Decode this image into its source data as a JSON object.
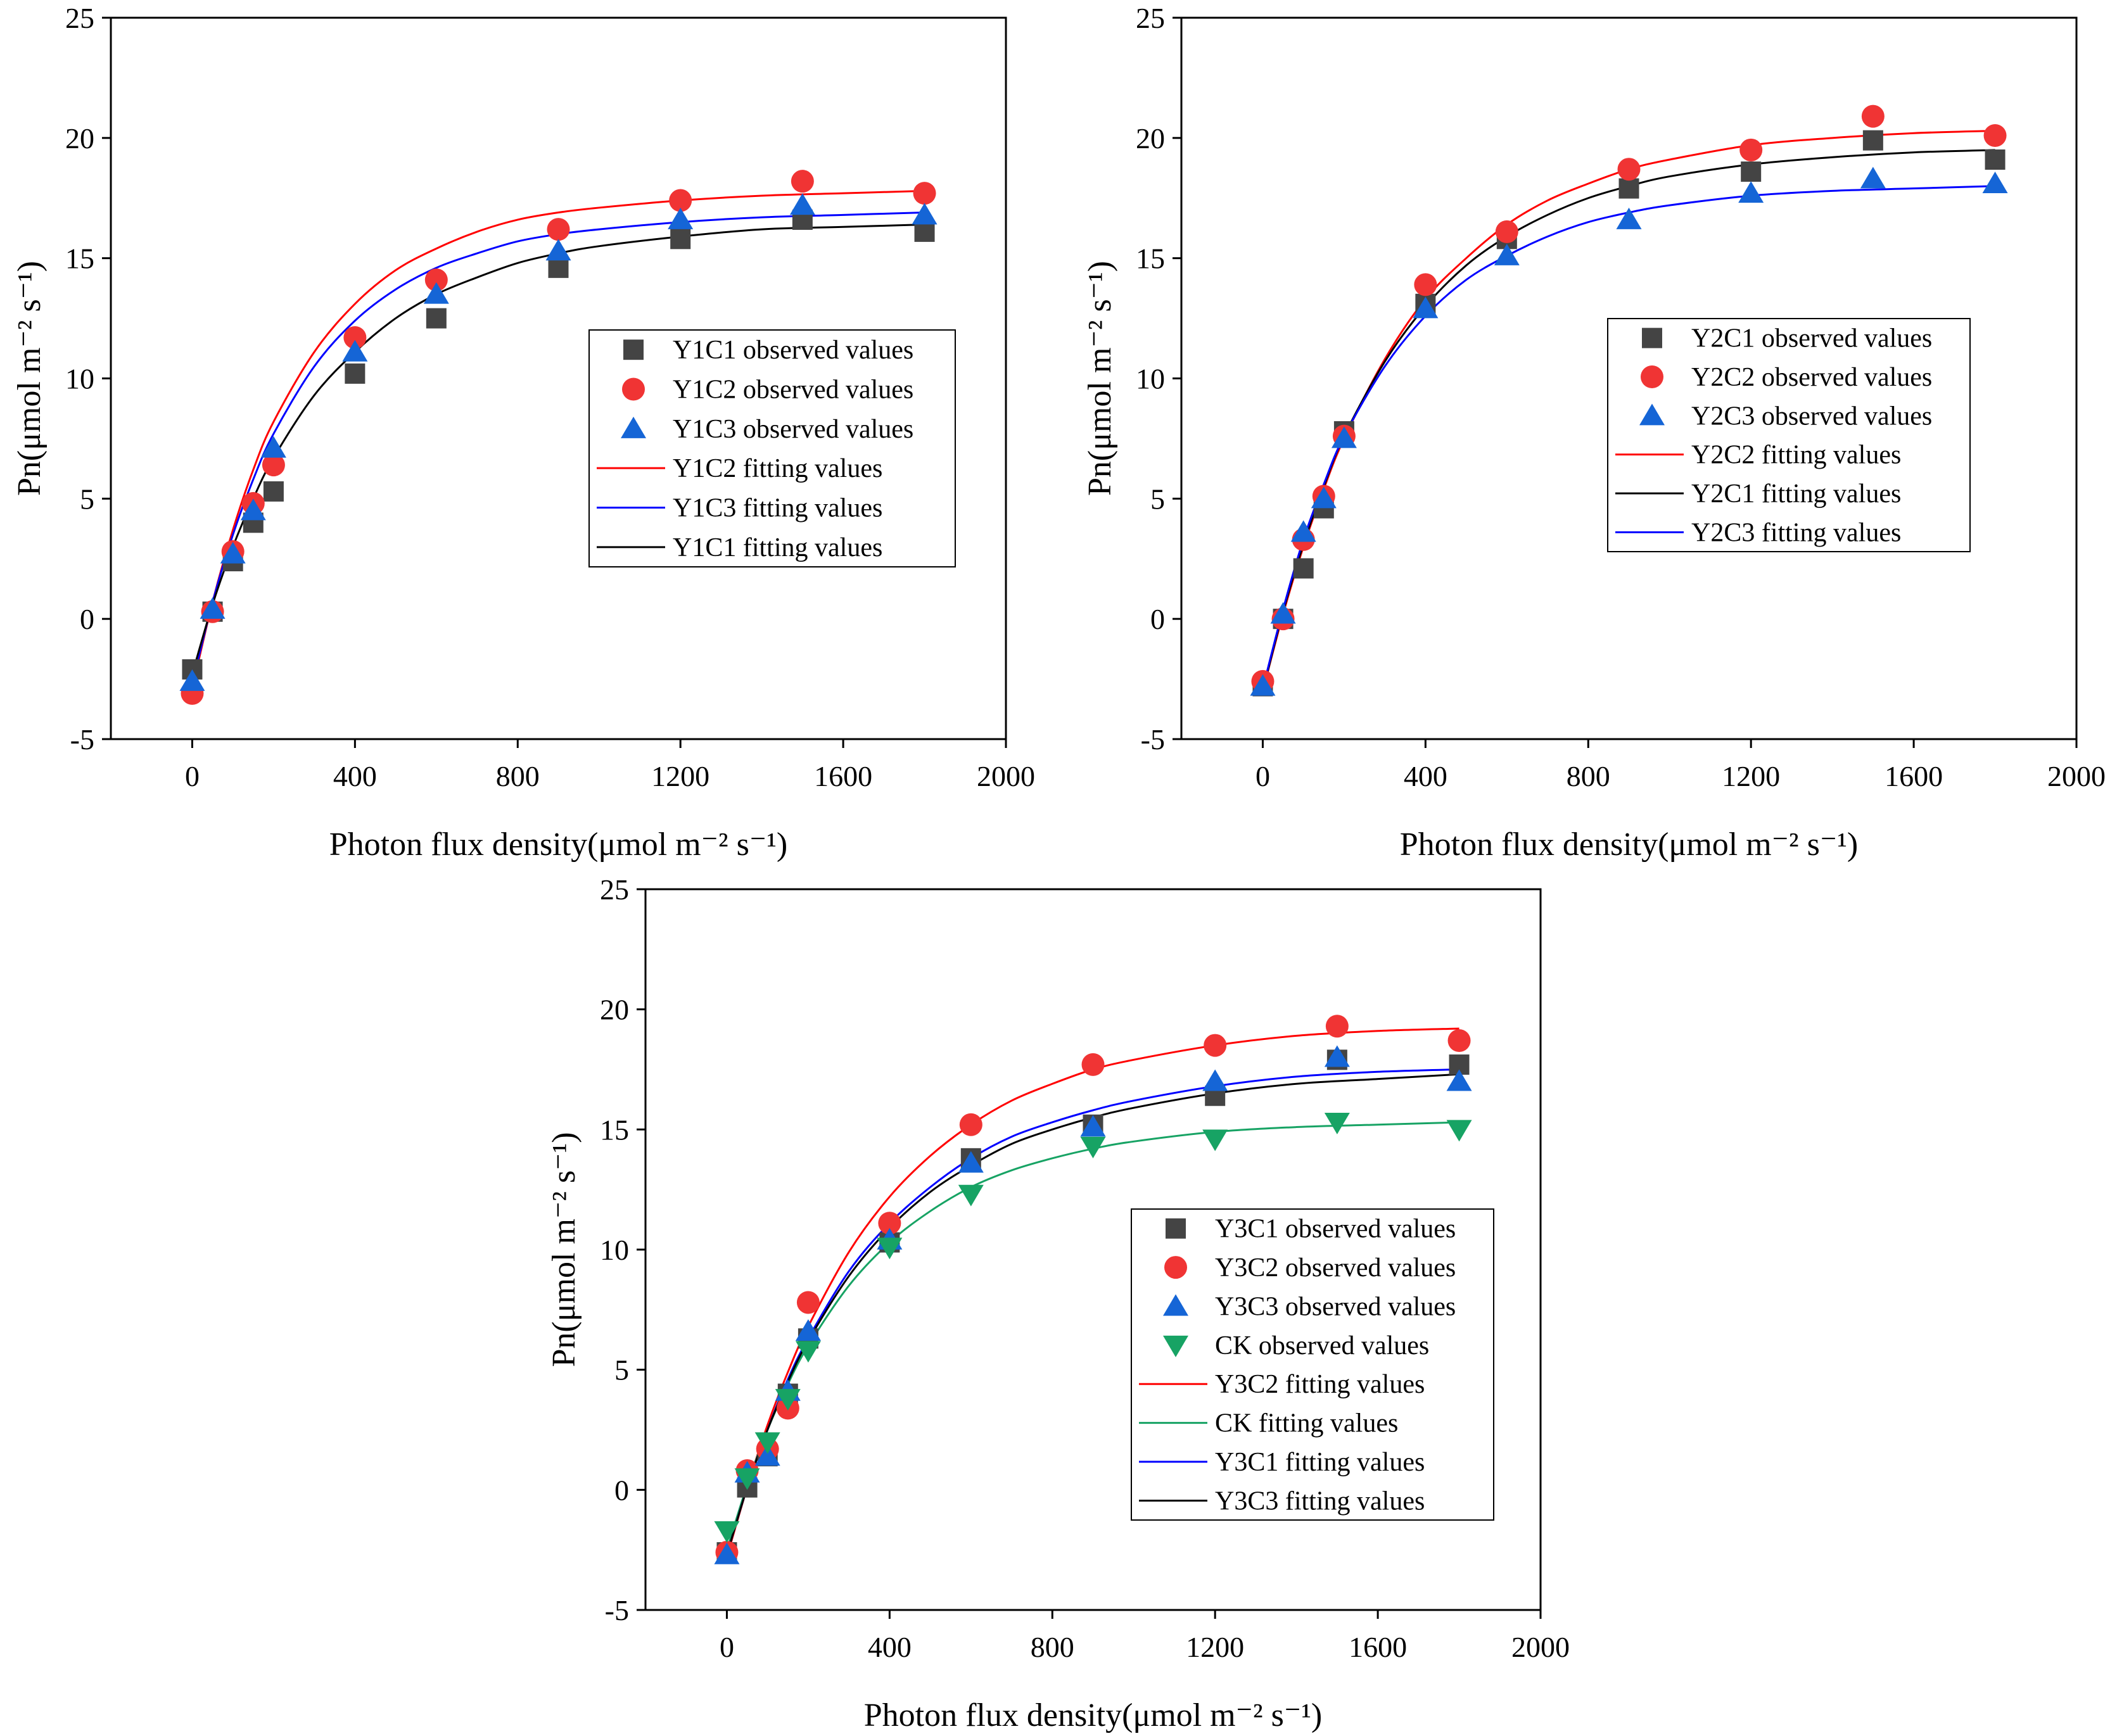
{
  "figure": {
    "x_axis_title": "Photon flux density(μmol m⁻² s⁻¹)",
    "y_axis_title": "Pn(μmol m⁻² s⁻¹)"
  },
  "chart_data": [
    {
      "id": "chart-y1",
      "type": "scatter",
      "xlabel": "Photon flux density(μmol m⁻² s⁻¹)",
      "ylabel": "Pn(μmol m⁻² s⁻¹)",
      "xlim": [
        -200,
        2000
      ],
      "ylim": [
        -5,
        25
      ],
      "xticks": [
        0,
        400,
        800,
        1200,
        1600,
        2000
      ],
      "yticks": [
        -5,
        0,
        5,
        10,
        15,
        20,
        25
      ],
      "legend_position": "center-right",
      "series": [
        {
          "name": "Y1C1 observed values",
          "kind": "points",
          "marker": "square",
          "color": "#444444",
          "x": [
            0,
            50,
            100,
            150,
            200,
            400,
            600,
            900,
            1200,
            1500,
            1800
          ],
          "y": [
            -2.1,
            0.3,
            2.4,
            4.0,
            5.3,
            10.2,
            12.5,
            14.6,
            15.8,
            16.6,
            16.1
          ]
        },
        {
          "name": "Y1C2 observed values",
          "kind": "points",
          "marker": "circle",
          "color": "#f03434",
          "x": [
            0,
            50,
            100,
            150,
            200,
            400,
            600,
            900,
            1200,
            1500,
            1800
          ],
          "y": [
            -3.1,
            0.3,
            2.8,
            4.8,
            6.4,
            11.7,
            14.1,
            16.2,
            17.4,
            18.2,
            17.7
          ]
        },
        {
          "name": "Y1C3 observed values",
          "kind": "points",
          "marker": "triangle",
          "color": "#1565d6",
          "x": [
            0,
            50,
            100,
            150,
            200,
            400,
            600,
            900,
            1200,
            1500,
            1800
          ],
          "y": [
            -2.6,
            0.4,
            2.7,
            4.5,
            7.1,
            11.1,
            13.5,
            15.3,
            16.6,
            17.2,
            16.8
          ]
        },
        {
          "name": "Y1C2 fitting values",
          "kind": "line",
          "color": "#ff0000",
          "x": [
            0,
            50,
            100,
            150,
            200,
            300,
            400,
            500,
            600,
            700,
            800,
            900,
            1000,
            1200,
            1400,
            1600,
            1800
          ],
          "y": [
            -2.9,
            0.7,
            3.7,
            6.2,
            8.2,
            11.1,
            13.1,
            14.5,
            15.4,
            16.1,
            16.6,
            16.9,
            17.1,
            17.4,
            17.6,
            17.7,
            17.8
          ]
        },
        {
          "name": "Y1C3 fitting values",
          "kind": "line",
          "color": "#0000ff",
          "x": [
            0,
            50,
            100,
            150,
            200,
            300,
            400,
            500,
            600,
            700,
            800,
            900,
            1000,
            1200,
            1400,
            1600,
            1800
          ],
          "y": [
            -2.7,
            0.7,
            3.5,
            5.8,
            7.7,
            10.5,
            12.4,
            13.7,
            14.6,
            15.2,
            15.7,
            16.0,
            16.2,
            16.5,
            16.7,
            16.8,
            16.9
          ]
        },
        {
          "name": "Y1C1 fitting values",
          "kind": "line",
          "color": "#000000",
          "x": [
            0,
            50,
            100,
            150,
            200,
            300,
            400,
            500,
            600,
            700,
            800,
            900,
            1000,
            1200,
            1400,
            1600,
            1800
          ],
          "y": [
            -2.3,
            0.6,
            3.0,
            5.0,
            6.7,
            9.3,
            11.1,
            12.5,
            13.5,
            14.2,
            14.8,
            15.2,
            15.5,
            15.9,
            16.2,
            16.3,
            16.4
          ]
        }
      ]
    },
    {
      "id": "chart-y2",
      "type": "scatter",
      "xlabel": "Photon flux density(μmol m⁻² s⁻¹)",
      "ylabel": "Pn(μmol m⁻² s⁻¹)",
      "xlim": [
        -200,
        2000
      ],
      "ylim": [
        -5,
        25
      ],
      "xticks": [
        0,
        400,
        800,
        1200,
        1600,
        2000
      ],
      "yticks": [
        -5,
        0,
        5,
        10,
        15,
        20,
        25
      ],
      "legend_position": "center-right",
      "series": [
        {
          "name": "Y2C1 observed values",
          "kind": "points",
          "marker": "square",
          "color": "#444444",
          "x": [
            0,
            50,
            100,
            150,
            200,
            400,
            600,
            900,
            1200,
            1500,
            1800
          ],
          "y": [
            -2.8,
            0.0,
            2.1,
            4.6,
            7.8,
            13.1,
            15.8,
            17.9,
            18.6,
            19.9,
            19.1
          ]
        },
        {
          "name": "Y2C2 observed values",
          "kind": "points",
          "marker": "circle",
          "color": "#f03434",
          "x": [
            0,
            50,
            100,
            150,
            200,
            400,
            600,
            900,
            1200,
            1500,
            1800
          ],
          "y": [
            -2.6,
            0.0,
            3.3,
            5.1,
            7.6,
            13.9,
            16.1,
            18.7,
            19.5,
            20.9,
            20.1
          ]
        },
        {
          "name": "Y2C3 observed values",
          "kind": "points",
          "marker": "triangle",
          "color": "#1565d6",
          "x": [
            0,
            50,
            100,
            150,
            200,
            400,
            600,
            900,
            1200,
            1500,
            1800
          ],
          "y": [
            -2.8,
            0.2,
            3.6,
            5.0,
            7.5,
            12.9,
            15.1,
            16.6,
            17.7,
            18.3,
            18.1
          ]
        },
        {
          "name": "Y2C2 fitting values",
          "kind": "line",
          "color": "#ff0000",
          "x": [
            0,
            50,
            100,
            150,
            200,
            300,
            400,
            500,
            600,
            700,
            800,
            900,
            1000,
            1200,
            1400,
            1600,
            1800
          ],
          "y": [
            -3.0,
            0.2,
            3.0,
            5.4,
            7.5,
            10.8,
            13.3,
            15.0,
            16.4,
            17.4,
            18.1,
            18.7,
            19.1,
            19.7,
            20.0,
            20.2,
            20.3
          ]
        },
        {
          "name": "Y2C1 fitting values",
          "kind": "line",
          "color": "#000000",
          "x": [
            0,
            50,
            100,
            150,
            200,
            300,
            400,
            500,
            600,
            700,
            800,
            900,
            1000,
            1200,
            1400,
            1600,
            1800
          ],
          "y": [
            -3.0,
            0.3,
            3.1,
            5.5,
            7.6,
            10.7,
            13.0,
            14.7,
            15.9,
            16.8,
            17.5,
            18.0,
            18.4,
            18.9,
            19.2,
            19.4,
            19.5
          ]
        },
        {
          "name": "Y2C3 fitting values",
          "kind": "line",
          "color": "#0000ff",
          "x": [
            0,
            50,
            100,
            150,
            200,
            300,
            400,
            500,
            600,
            700,
            800,
            900,
            1000,
            1200,
            1400,
            1600,
            1800
          ],
          "y": [
            -2.9,
            0.4,
            3.3,
            5.6,
            7.6,
            10.5,
            12.6,
            14.1,
            15.1,
            15.9,
            16.5,
            16.9,
            17.2,
            17.6,
            17.8,
            17.9,
            18.0
          ]
        }
      ]
    },
    {
      "id": "chart-y3",
      "type": "scatter",
      "xlabel": "Photon flux density(μmol m⁻² s⁻¹)",
      "ylabel": "Pn(μmol m⁻² s⁻¹)",
      "xlim": [
        -200,
        2000
      ],
      "ylim": [
        -5,
        25
      ],
      "xticks": [
        0,
        400,
        800,
        1200,
        1600,
        2000
      ],
      "yticks": [
        -5,
        0,
        5,
        10,
        15,
        20,
        25
      ],
      "legend_position": "center-right",
      "series": [
        {
          "name": "Y3C1 observed values",
          "kind": "points",
          "marker": "square",
          "color": "#444444",
          "x": [
            0,
            50,
            100,
            150,
            200,
            400,
            600,
            900,
            1200,
            1500,
            1800
          ],
          "y": [
            -2.6,
            0.1,
            1.4,
            4.0,
            6.3,
            10.3,
            13.8,
            15.2,
            16.4,
            17.9,
            17.7
          ]
        },
        {
          "name": "Y3C2 observed values",
          "kind": "points",
          "marker": "circle",
          "color": "#f03434",
          "x": [
            0,
            50,
            100,
            150,
            200,
            400,
            600,
            900,
            1200,
            1500,
            1800
          ],
          "y": [
            -2.6,
            0.8,
            1.7,
            3.4,
            7.8,
            11.1,
            15.2,
            17.7,
            18.5,
            19.3,
            18.7
          ]
        },
        {
          "name": "Y3C3 observed values",
          "kind": "points",
          "marker": "triangle",
          "color": "#1565d6",
          "x": [
            0,
            50,
            100,
            150,
            200,
            400,
            600,
            900,
            1200,
            1500,
            1800
          ],
          "y": [
            -2.7,
            0.7,
            1.4,
            4.1,
            6.6,
            10.4,
            13.6,
            15.1,
            17.0,
            18.0,
            17.0
          ]
        },
        {
          "name": "CK observed values",
          "kind": "points",
          "marker": "triangle-down",
          "color": "#17a364",
          "x": [
            0,
            50,
            100,
            150,
            200,
            400,
            600,
            900,
            1200,
            1500,
            1800
          ],
          "y": [
            -1.7,
            0.5,
            2.0,
            3.8,
            5.8,
            10.1,
            12.3,
            14.3,
            14.6,
            15.3,
            15.0
          ]
        },
        {
          "name": "Y3C2 fitting values",
          "kind": "line",
          "color": "#ff0000",
          "x": [
            0,
            50,
            100,
            150,
            200,
            300,
            400,
            500,
            600,
            700,
            800,
            900,
            1000,
            1200,
            1400,
            1600,
            1800
          ],
          "y": [
            -2.8,
            0.1,
            2.7,
            4.9,
            6.8,
            9.9,
            12.2,
            13.9,
            15.2,
            16.2,
            16.9,
            17.5,
            17.9,
            18.5,
            18.9,
            19.1,
            19.2
          ]
        },
        {
          "name": "CK fitting values",
          "kind": "line",
          "color": "#17a364",
          "x": [
            0,
            50,
            100,
            150,
            200,
            300,
            400,
            500,
            600,
            700,
            800,
            900,
            1000,
            1200,
            1400,
            1600,
            1800
          ],
          "y": [
            -2.5,
            0.2,
            2.5,
            4.4,
            6.0,
            8.5,
            10.3,
            11.6,
            12.6,
            13.3,
            13.8,
            14.2,
            14.5,
            14.9,
            15.1,
            15.2,
            15.3
          ]
        },
        {
          "name": "Y3C1 fitting values",
          "kind": "line",
          "color": "#0000ff",
          "x": [
            0,
            50,
            100,
            150,
            200,
            300,
            400,
            500,
            600,
            700,
            800,
            900,
            1000,
            1200,
            1400,
            1600,
            1800
          ],
          "y": [
            -2.7,
            0.1,
            2.5,
            4.6,
            6.3,
            9.1,
            11.1,
            12.6,
            13.8,
            14.7,
            15.3,
            15.8,
            16.2,
            16.8,
            17.2,
            17.4,
            17.5
          ]
        },
        {
          "name": "Y3C3 fitting values",
          "kind": "line",
          "color": "#000000",
          "x": [
            0,
            50,
            100,
            150,
            200,
            300,
            400,
            500,
            600,
            700,
            800,
            900,
            1000,
            1200,
            1400,
            1600,
            1800
          ],
          "y": [
            -2.7,
            0.1,
            2.5,
            4.5,
            6.2,
            8.9,
            10.9,
            12.4,
            13.5,
            14.4,
            15.0,
            15.5,
            15.9,
            16.5,
            16.9,
            17.1,
            17.3
          ]
        }
      ]
    }
  ]
}
